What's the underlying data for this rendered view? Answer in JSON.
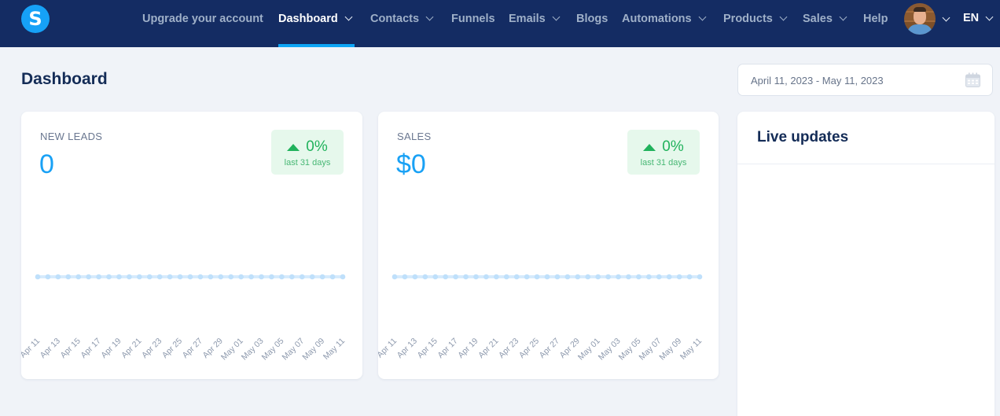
{
  "nav": {
    "logo_letter": "S",
    "items": [
      {
        "label": "Upgrade your account",
        "dropdown": false,
        "active": false
      },
      {
        "label": "Dashboard",
        "dropdown": true,
        "active": true
      },
      {
        "label": "Contacts",
        "dropdown": true,
        "active": false
      },
      {
        "label": "Funnels",
        "dropdown": false,
        "active": false
      },
      {
        "label": "Emails",
        "dropdown": true,
        "active": false
      },
      {
        "label": "Blogs",
        "dropdown": false,
        "active": false
      },
      {
        "label": "Automations",
        "dropdown": true,
        "active": false
      },
      {
        "label": "Products",
        "dropdown": true,
        "active": false
      },
      {
        "label": "Sales",
        "dropdown": true,
        "active": false
      },
      {
        "label": "Help",
        "dropdown": false,
        "active": false
      }
    ],
    "language": "EN"
  },
  "header": {
    "title": "Dashboard",
    "date_range": "April 11, 2023 - May 11, 2023"
  },
  "cards": {
    "leads": {
      "label": "NEW LEADS",
      "value": "0",
      "change": "0%",
      "period": "last 31 days",
      "direction": "up"
    },
    "sales": {
      "label": "SALES",
      "value": "$0",
      "change": "0%",
      "period": "last 31 days",
      "direction": "up"
    }
  },
  "live_updates": {
    "title": "Live updates"
  },
  "colors": {
    "nav_bg": "#142c63",
    "accent": "#0ea5f5",
    "positive": "#21b25c",
    "line": "#bfe0fb"
  },
  "chart_data": [
    {
      "type": "line",
      "title": "NEW LEADS",
      "x": [
        "Apr 11",
        "Apr 12",
        "Apr 13",
        "Apr 14",
        "Apr 15",
        "Apr 16",
        "Apr 17",
        "Apr 18",
        "Apr 19",
        "Apr 20",
        "Apr 21",
        "Apr 22",
        "Apr 23",
        "Apr 24",
        "Apr 25",
        "Apr 26",
        "Apr 27",
        "Apr 28",
        "Apr 29",
        "Apr 30",
        "May 01",
        "May 02",
        "May 03",
        "May 04",
        "May 05",
        "May 06",
        "May 07",
        "May 08",
        "May 09",
        "May 10",
        "May 11"
      ],
      "tick_labels": [
        "Apr 11",
        "Apr 13",
        "Apr 15",
        "Apr 17",
        "Apr 19",
        "Apr 21",
        "Apr 23",
        "Apr 25",
        "Apr 27",
        "Apr 29",
        "May 01",
        "May 03",
        "May 05",
        "May 07",
        "May 09",
        "May 11"
      ],
      "values": [
        0,
        0,
        0,
        0,
        0,
        0,
        0,
        0,
        0,
        0,
        0,
        0,
        0,
        0,
        0,
        0,
        0,
        0,
        0,
        0,
        0,
        0,
        0,
        0,
        0,
        0,
        0,
        0,
        0,
        0,
        0
      ],
      "xlabel": "",
      "ylabel": "",
      "grid": false,
      "legend": false
    },
    {
      "type": "line",
      "title": "SALES",
      "x": [
        "Apr 11",
        "Apr 12",
        "Apr 13",
        "Apr 14",
        "Apr 15",
        "Apr 16",
        "Apr 17",
        "Apr 18",
        "Apr 19",
        "Apr 20",
        "Apr 21",
        "Apr 22",
        "Apr 23",
        "Apr 24",
        "Apr 25",
        "Apr 26",
        "Apr 27",
        "Apr 28",
        "Apr 29",
        "Apr 30",
        "May 01",
        "May 02",
        "May 03",
        "May 04",
        "May 05",
        "May 06",
        "May 07",
        "May 08",
        "May 09",
        "May 10",
        "May 11"
      ],
      "tick_labels": [
        "Apr 11",
        "Apr 13",
        "Apr 15",
        "Apr 17",
        "Apr 19",
        "Apr 21",
        "Apr 23",
        "Apr 25",
        "Apr 27",
        "Apr 29",
        "May 01",
        "May 03",
        "May 05",
        "May 07",
        "May 09",
        "May 11"
      ],
      "values": [
        0,
        0,
        0,
        0,
        0,
        0,
        0,
        0,
        0,
        0,
        0,
        0,
        0,
        0,
        0,
        0,
        0,
        0,
        0,
        0,
        0,
        0,
        0,
        0,
        0,
        0,
        0,
        0,
        0,
        0,
        0
      ],
      "xlabel": "",
      "ylabel": "",
      "grid": false,
      "legend": false
    }
  ]
}
